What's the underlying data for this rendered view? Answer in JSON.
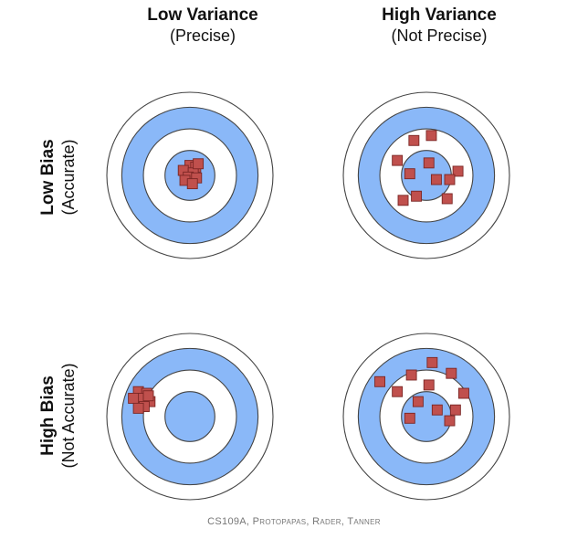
{
  "columns": [
    {
      "main": "Low Variance",
      "sub": "(Precise)"
    },
    {
      "main": "High Variance",
      "sub": "(Not Precise)"
    }
  ],
  "rows": [
    {
      "main": "Low Bias",
      "sub": "(Accurate)"
    },
    {
      "main": "High Bias",
      "sub": "(Not Accurate)"
    }
  ],
  "credit": "CS109A, Protopapas, Rader, Tanner",
  "colors": {
    "ring_blue": "#8ab8f8",
    "ring_white": "#ffffff",
    "ring_stroke": "#444444",
    "marker_fill": "#c0504d",
    "marker_stroke": "#7a2624"
  },
  "targets": [
    {
      "name": "low-bias-low-variance",
      "hits": [
        [
          0.0,
          -0.12
        ],
        [
          0.07,
          -0.1
        ],
        [
          -0.08,
          -0.06
        ],
        [
          0.04,
          -0.03
        ],
        [
          -0.02,
          0.02
        ],
        [
          0.08,
          0.03
        ],
        [
          -0.06,
          0.06
        ],
        [
          0.03,
          0.1
        ],
        [
          0.1,
          -0.14
        ]
      ]
    },
    {
      "name": "low-bias-high-variance",
      "hits": [
        [
          -0.15,
          -0.42
        ],
        [
          0.06,
          -0.48
        ],
        [
          -0.35,
          -0.18
        ],
        [
          0.03,
          -0.15
        ],
        [
          0.38,
          -0.05
        ],
        [
          -0.2,
          -0.02
        ],
        [
          0.12,
          0.05
        ],
        [
          0.28,
          0.05
        ],
        [
          -0.12,
          0.25
        ],
        [
          0.25,
          0.28
        ],
        [
          -0.28,
          0.3
        ]
      ]
    },
    {
      "name": "high-bias-low-variance",
      "hits": [
        [
          -0.62,
          -0.3
        ],
        [
          -0.52,
          -0.28
        ],
        [
          -0.57,
          -0.22
        ],
        [
          -0.68,
          -0.22
        ],
        [
          -0.48,
          -0.18
        ],
        [
          -0.55,
          -0.12
        ],
        [
          -0.62,
          -0.1
        ],
        [
          -0.5,
          -0.25
        ]
      ]
    },
    {
      "name": "high-bias-high-variance",
      "hits": [
        [
          0.07,
          -0.65
        ],
        [
          -0.18,
          -0.5
        ],
        [
          0.3,
          -0.52
        ],
        [
          -0.56,
          -0.42
        ],
        [
          0.03,
          -0.38
        ],
        [
          -0.35,
          -0.3
        ],
        [
          0.45,
          -0.28
        ],
        [
          -0.1,
          -0.18
        ],
        [
          0.13,
          -0.08
        ],
        [
          0.35,
          -0.08
        ],
        [
          -0.2,
          0.02
        ],
        [
          0.28,
          0.05
        ]
      ]
    }
  ]
}
